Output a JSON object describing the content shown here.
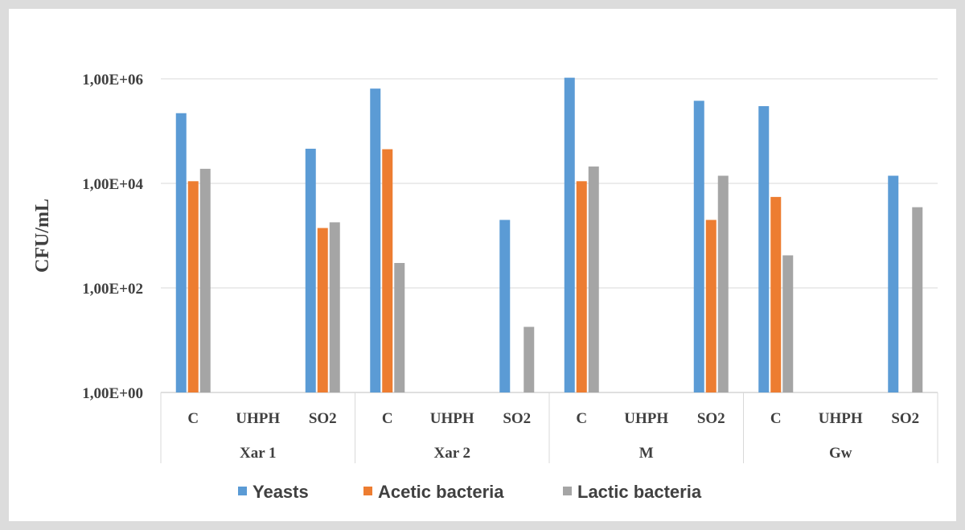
{
  "chart_data": {
    "type": "bar",
    "ylabel": "CFU/mL",
    "yscale": "log",
    "ylim": [
      1,
      1000000
    ],
    "yticks": [
      "1,00E+00",
      "1,00E+02",
      "1,00E+04",
      "1,00E+06"
    ],
    "ytick_values": [
      1,
      100,
      10000,
      1000000
    ],
    "groups": [
      {
        "name": "Xar 1",
        "categories": [
          "C",
          "UHPH",
          "SO2"
        ]
      },
      {
        "name": "Xar 2",
        "categories": [
          "C",
          "UHPH",
          "SO2"
        ]
      },
      {
        "name": "M",
        "categories": [
          "C",
          "UHPH",
          "SO2"
        ]
      },
      {
        "name": "Gw",
        "categories": [
          "C",
          "UHPH",
          "SO2"
        ]
      }
    ],
    "series": [
      {
        "name": "Yeasts",
        "color": "#5b9bd5",
        "values": [
          220000,
          null,
          46000,
          650000,
          null,
          2000,
          1050000,
          null,
          380000,
          300000,
          null,
          14000
        ]
      },
      {
        "name": "Acetic bacteria",
        "color": "#ed7d31",
        "values": [
          11000,
          null,
          1400,
          45000,
          null,
          null,
          11000,
          null,
          2000,
          5500,
          null,
          null
        ]
      },
      {
        "name": "Lactic bacteria",
        "color": "#a5a5a5",
        "values": [
          19000,
          null,
          1800,
          300,
          null,
          18,
          21000,
          null,
          14000,
          420,
          null,
          3500
        ]
      }
    ],
    "grid": true,
    "legend_position": "bottom"
  }
}
